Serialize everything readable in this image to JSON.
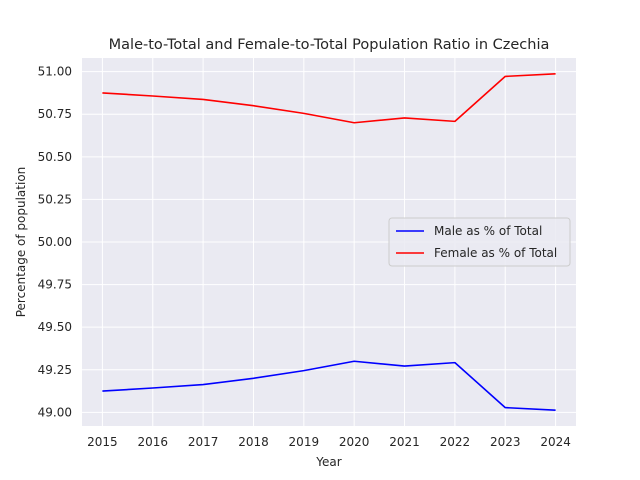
{
  "chart_data": {
    "type": "line",
    "title": "Male-to-Total and Female-to-Total Population Ratio in Czechia",
    "xlabel": "Year",
    "ylabel": "Percentage of population",
    "x": [
      2015,
      2016,
      2017,
      2018,
      2019,
      2020,
      2021,
      2022,
      2023,
      2024
    ],
    "x_ticks": [
      "2015",
      "2016",
      "2017",
      "2018",
      "2019",
      "2020",
      "2021",
      "2022",
      "2023",
      "2024"
    ],
    "y_ticks": [
      "49.00",
      "49.25",
      "49.50",
      "49.75",
      "50.00",
      "50.25",
      "50.50",
      "50.75",
      "51.00"
    ],
    "ylim": [
      48.92,
      51.08
    ],
    "grid": true,
    "legend_position": "center-right",
    "series": [
      {
        "name": "Male as % of Total",
        "color": "#0000ff",
        "values": [
          49.125,
          49.143,
          49.163,
          49.2,
          49.245,
          49.3,
          49.272,
          49.292,
          49.028,
          49.013
        ]
      },
      {
        "name": "Female as % of Total",
        "color": "#ff0000",
        "values": [
          50.875,
          50.857,
          50.837,
          50.8,
          50.755,
          50.7,
          50.728,
          50.708,
          50.972,
          50.987
        ]
      }
    ]
  }
}
